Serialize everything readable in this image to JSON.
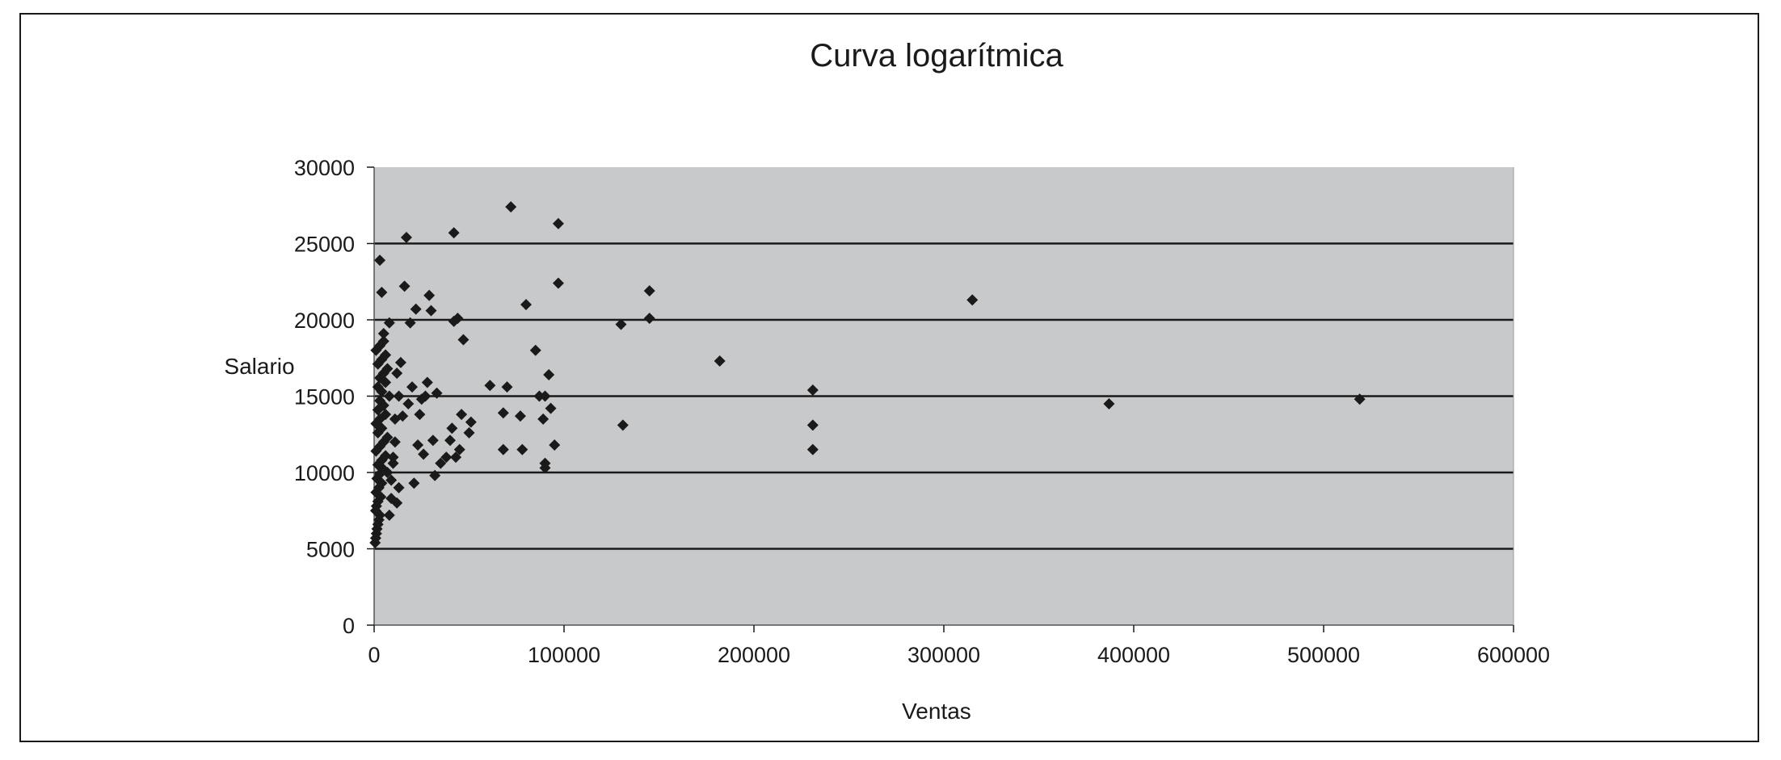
{
  "chart_data": {
    "type": "scatter",
    "title": "Curva logarítmica",
    "xlabel": "Ventas",
    "ylabel": "Salario",
    "xlim": [
      0,
      600000
    ],
    "ylim": [
      0,
      30000
    ],
    "x_ticks": [
      0,
      100000,
      200000,
      300000,
      400000,
      500000,
      600000
    ],
    "y_ticks": [
      0,
      5000,
      10000,
      15000,
      20000,
      25000,
      30000
    ],
    "x_tick_labels": [
      "0",
      "100000",
      "200000",
      "300000",
      "400000",
      "500000",
      "600000"
    ],
    "y_tick_labels": [
      "0",
      "5000",
      "10000",
      "15000",
      "20000",
      "25000",
      "30000"
    ],
    "grid": "horizontal",
    "legend": "none",
    "colors": {
      "plot_background": "#c8c9cb",
      "marker": "#1a1a1a",
      "gridline": "#1a1a1a"
    },
    "series": [
      {
        "marker": "diamond",
        "points": [
          [
            500,
            5400
          ],
          [
            800,
            5700
          ],
          [
            1200,
            6000
          ],
          [
            1500,
            6300
          ],
          [
            2000,
            6600
          ],
          [
            2500,
            6900
          ],
          [
            3000,
            7200
          ],
          [
            800,
            7500
          ],
          [
            1200,
            7800
          ],
          [
            2000,
            8100
          ],
          [
            3500,
            8400
          ],
          [
            1000,
            8700
          ],
          [
            2500,
            9000
          ],
          [
            4000,
            9300
          ],
          [
            1500,
            9600
          ],
          [
            3000,
            9900
          ],
          [
            5000,
            10200
          ],
          [
            2000,
            10500
          ],
          [
            4000,
            10800
          ],
          [
            6000,
            11100
          ],
          [
            1000,
            11400
          ],
          [
            3000,
            11700
          ],
          [
            5000,
            12000
          ],
          [
            7000,
            12300
          ],
          [
            2000,
            12600
          ],
          [
            4000,
            12900
          ],
          [
            1000,
            13200
          ],
          [
            3000,
            13500
          ],
          [
            6000,
            13800
          ],
          [
            2000,
            14100
          ],
          [
            5000,
            14400
          ],
          [
            3000,
            14700
          ],
          [
            8000,
            15000
          ],
          [
            4000,
            15300
          ],
          [
            2000,
            15600
          ],
          [
            6000,
            15900
          ],
          [
            3000,
            16200
          ],
          [
            5000,
            16500
          ],
          [
            7000,
            16800
          ],
          [
            2000,
            17100
          ],
          [
            4000,
            17400
          ],
          [
            6000,
            17700
          ],
          [
            1000,
            18000
          ],
          [
            3000,
            18300
          ],
          [
            5000,
            18600
          ],
          [
            5000,
            19100
          ],
          [
            8000,
            19800
          ],
          [
            3000,
            23900
          ],
          [
            4000,
            21800
          ],
          [
            7000,
            10000
          ],
          [
            9000,
            9500
          ],
          [
            10000,
            11000
          ],
          [
            11000,
            12000
          ],
          [
            12000,
            8000
          ],
          [
            13000,
            9000
          ],
          [
            8000,
            7200
          ],
          [
            9000,
            8300
          ],
          [
            10000,
            10600
          ],
          [
            11000,
            13500
          ],
          [
            12000,
            16500
          ],
          [
            13000,
            15000
          ],
          [
            14000,
            17200
          ],
          [
            15000,
            13700
          ],
          [
            16000,
            22200
          ],
          [
            17000,
            25400
          ],
          [
            18000,
            14500
          ],
          [
            19000,
            19800
          ],
          [
            20000,
            15600
          ],
          [
            21000,
            9300
          ],
          [
            22000,
            20700
          ],
          [
            23000,
            11800
          ],
          [
            24000,
            13800
          ],
          [
            25000,
            14800
          ],
          [
            26000,
            11200
          ],
          [
            27000,
            15000
          ],
          [
            28000,
            15900
          ],
          [
            29000,
            21600
          ],
          [
            30000,
            20600
          ],
          [
            31000,
            12100
          ],
          [
            32000,
            9800
          ],
          [
            33000,
            15200
          ],
          [
            35000,
            10600
          ],
          [
            38000,
            11000
          ],
          [
            40000,
            12100
          ],
          [
            41000,
            12900
          ],
          [
            42000,
            25700
          ],
          [
            42000,
            19900
          ],
          [
            43000,
            11000
          ],
          [
            44000,
            20100
          ],
          [
            45000,
            11500
          ],
          [
            46000,
            13800
          ],
          [
            47000,
            18700
          ],
          [
            50000,
            12600
          ],
          [
            51000,
            13300
          ],
          [
            61000,
            15700
          ],
          [
            68000,
            13900
          ],
          [
            68000,
            11500
          ],
          [
            70000,
            15600
          ],
          [
            72000,
            27400
          ],
          [
            77000,
            13700
          ],
          [
            78000,
            11500
          ],
          [
            80000,
            21000
          ],
          [
            85000,
            18000
          ],
          [
            87000,
            15000
          ],
          [
            89000,
            13500
          ],
          [
            90000,
            15000
          ],
          [
            90000,
            10300
          ],
          [
            90000,
            10600
          ],
          [
            92000,
            16400
          ],
          [
            93000,
            14200
          ],
          [
            95000,
            11800
          ],
          [
            97000,
            26300
          ],
          [
            97000,
            22400
          ],
          [
            130000,
            19700
          ],
          [
            131000,
            13100
          ],
          [
            145000,
            21900
          ],
          [
            145000,
            20100
          ],
          [
            182000,
            17300
          ],
          [
            231000,
            15400
          ],
          [
            231000,
            13100
          ],
          [
            231000,
            11500
          ],
          [
            315000,
            21300
          ],
          [
            387000,
            14500
          ],
          [
            519000,
            14800
          ]
        ]
      }
    ]
  }
}
